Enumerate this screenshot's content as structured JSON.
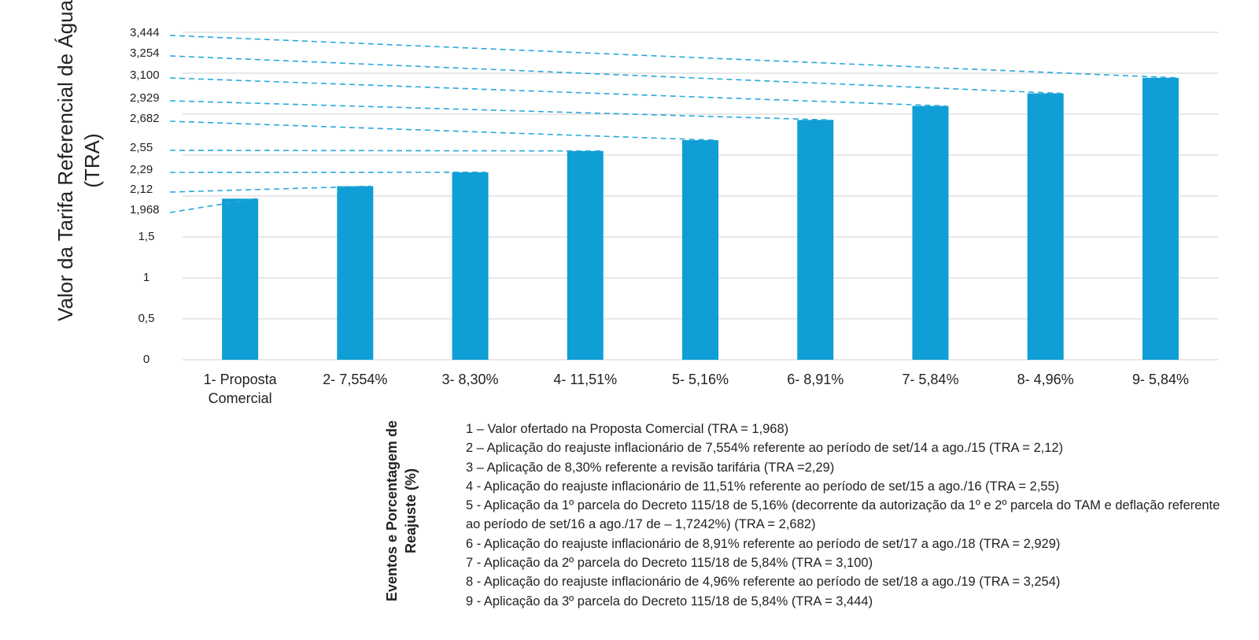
{
  "chart_data": {
    "type": "bar",
    "y_axis_label": "Valor da Tarifa Referencial de Água (TRA)",
    "x_axis_label": "Eventos e Porcentagem de Reajuste (%)",
    "categories": [
      "1- Proposta Comercial",
      "2-  7,554%",
      "3-  8,30%",
      "4-  11,51%",
      "5-  5,16%",
      "6-  8,91%",
      "7-  5,84%",
      "8-  4,96%",
      "9-  5,84%"
    ],
    "values": [
      1.968,
      2.12,
      2.29,
      2.55,
      2.682,
      2.929,
      3.1,
      3.254,
      3.444
    ],
    "value_labels": [
      "1,968",
      "2,12",
      "2,29",
      "2,55",
      "2,682",
      "2,929",
      "3,100",
      "3,254",
      "3,444"
    ],
    "color": "#0f9ed5",
    "ylim": [
      0,
      4
    ],
    "yticks": [
      0,
      {
        "value": 0.5,
        "label": "0,5"
      },
      1,
      {
        "value": 1.5,
        "label": "1,5"
      },
      {
        "value": 2,
        "label": null
      },
      {
        "value": 2.5,
        "label": null
      },
      {
        "value": 3,
        "label": null
      },
      {
        "value": 3.5,
        "label": null
      },
      {
        "value": 4,
        "label": null
      }
    ],
    "grid": true,
    "notes": [
      "1 – Valor ofertado na Proposta Comercial (TRA = 1,968)",
      "2 – Aplicação do reajuste inflacionário de 7,554% referente ao período de set/14 a ago./15 (TRA = 2,12)",
      "3 – Aplicação de 8,30% referente a revisão tarifária (TRA =2,29)",
      "4 - Aplicação do reajuste inflacionário de 11,51% referente ao período de set/15 a ago./16 (TRA = 2,55)",
      "5 - Aplicação da 1º parcela do Decreto 115/18 de 5,16% (decorrente da autorização da 1º e 2º parcela do TAM e deflação referente ao período de set/16 a ago./17 de – 1,7242%) (TRA = 2,682)",
      "6 - Aplicação do reajuste inflacionário de 8,91% referente ao período de set/17 a ago./18 (TRA = 2,929)",
      "7 - Aplicação da 2º parcela do Decreto 115/18 de 5,84% (TRA = 3,100)",
      "8 - Aplicação do reajuste inflacionário de 4,96% referente ao período de set/18 a ago./19 (TRA = 3,254)",
      "9 - Aplicação da 3º parcela do Decreto 115/18 de 5,84% (TRA = 3,444)"
    ]
  }
}
